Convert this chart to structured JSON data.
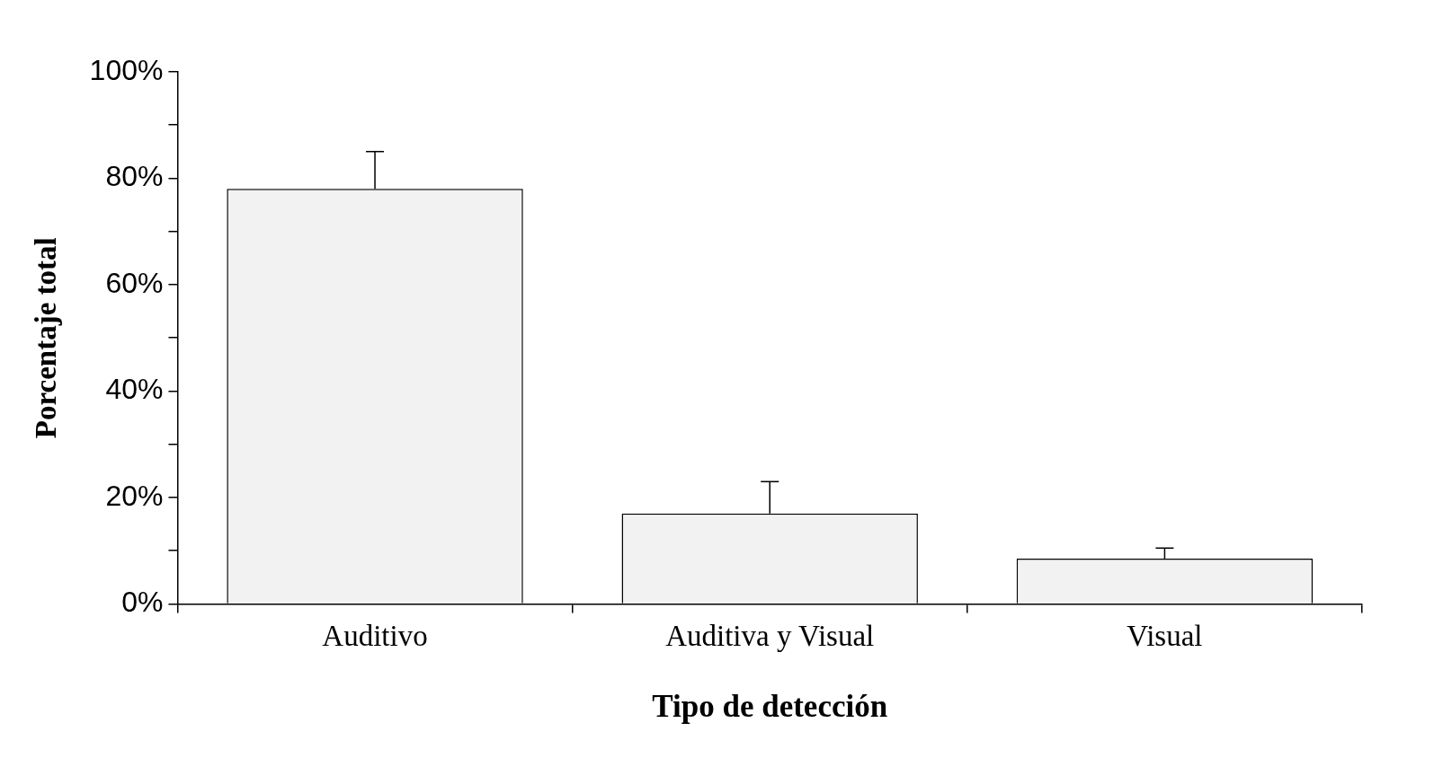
{
  "chart_data": {
    "type": "bar",
    "xlabel": "Tipo de detección",
    "ylabel": "Porcentaje total",
    "categories": [
      "Auditivo",
      "Auditiva y Visual",
      "Visual"
    ],
    "values": [
      78,
      17,
      8.5
    ],
    "errors": [
      [
        78,
        85
      ],
      [
        17,
        23
      ],
      [
        8.5,
        10.5
      ]
    ],
    "color": "#f2f2f2",
    "ylim": [
      0,
      100
    ],
    "yticks": [
      {
        "value": 0,
        "label": "0%"
      },
      {
        "value": 10,
        "label": null
      },
      {
        "value": 20,
        "label": "20%"
      },
      {
        "value": 30,
        "label": null
      },
      {
        "value": 40,
        "label": "40%"
      },
      {
        "value": 50,
        "label": null
      },
      {
        "value": 60,
        "label": "60%"
      },
      {
        "value": 70,
        "label": null
      },
      {
        "value": 80,
        "label": "80%"
      },
      {
        "value": 90,
        "label": null
      },
      {
        "value": 100,
        "label": "100%"
      }
    ],
    "grid": false,
    "legend": false
  }
}
